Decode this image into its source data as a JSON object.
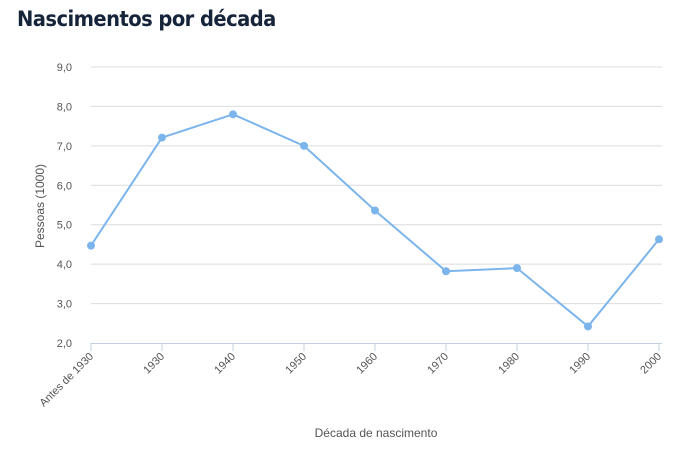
{
  "chart_data": {
    "type": "line",
    "title": "Nascimentos por década",
    "xlabel": "Década de nascimento",
    "ylabel": "Pessoas (1000)",
    "categories": [
      "Antes de 1930",
      "1930",
      "1940",
      "1950",
      "1960",
      "1970",
      "1980",
      "1990",
      "2000"
    ],
    "y_ticks": [
      "2,0",
      "3,0",
      "4,0",
      "5,0",
      "6,0",
      "7,0",
      "8,0",
      "9,0"
    ],
    "ylim": [
      2.0,
      9.0
    ],
    "series": [
      {
        "values": [
          4.47,
          7.21,
          7.8,
          7.0,
          5.36,
          3.82,
          3.9,
          2.42,
          4.63
        ],
        "color": "#7cb5ec"
      }
    ],
    "grid": true,
    "legend": "none",
    "gridline_color": "#dcdcdc",
    "axis_color": "#c0d0e0"
  }
}
